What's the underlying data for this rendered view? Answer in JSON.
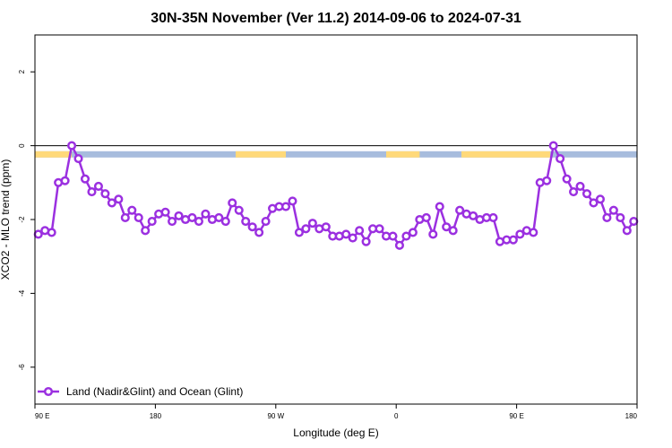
{
  "chart_data": {
    "type": "line",
    "title": "30N-35N November (Ver 11.2)   2014-09-06 to 2024-07-31",
    "xlabel": "Longitude (deg E)",
    "ylabel": "XCO2 - MLO trend (ppm)",
    "xlim": [
      90,
      450
    ],
    "ylim": [
      -7,
      3
    ],
    "x_ticks": [
      {
        "value": 90,
        "label": "90 E"
      },
      {
        "value": 162,
        "label": "180"
      },
      {
        "value": 234,
        "label": "90 W"
      },
      {
        "value": 306,
        "label": "0"
      },
      {
        "value": 378,
        "label": "90 E"
      },
      {
        "value": 450,
        "label": "180"
      }
    ],
    "y_ticks": [
      {
        "value": 2,
        "label": "2"
      },
      {
        "value": 0,
        "label": "0"
      },
      {
        "value": -2,
        "label": "-2"
      },
      {
        "value": -4,
        "label": "-4"
      },
      {
        "value": -6,
        "label": "-6"
      }
    ],
    "legend": {
      "position": "bottom-left"
    },
    "colors": {
      "series": "#9B30E0",
      "land": "#FFD97A",
      "ocean": "#A7BCDD",
      "zero_line": "#000000"
    },
    "land_ocean_band": {
      "y_top": -0.15,
      "y_bottom": -0.32,
      "land_segments": [
        [
          90,
          112
        ],
        [
          210,
          240
        ],
        [
          300,
          320
        ],
        [
          345,
          398
        ]
      ]
    },
    "series": [
      {
        "name": "Land (Nadir&Glint) and Ocean (Glint)",
        "x": [
          92,
          96,
          100,
          104,
          108,
          112,
          116,
          120,
          124,
          128,
          132,
          136,
          140,
          144,
          148,
          152,
          156,
          160,
          164,
          168,
          172,
          176,
          180,
          184,
          188,
          192,
          196,
          200,
          204,
          208,
          212,
          216,
          220,
          224,
          228,
          232,
          236,
          240,
          244,
          248,
          252,
          256,
          260,
          264,
          268,
          272,
          276,
          280,
          284,
          288,
          292,
          296,
          300,
          304,
          308,
          312,
          316,
          320,
          324,
          328,
          332,
          336,
          340,
          344,
          348,
          352,
          356,
          360,
          364,
          368,
          372,
          376,
          380,
          384,
          388,
          392,
          396,
          400,
          404,
          408,
          412,
          416,
          420,
          424,
          428,
          432,
          436,
          440,
          444,
          448
        ],
        "values": [
          -2.4,
          -2.3,
          -2.35,
          -1.0,
          -0.95,
          0.0,
          -0.35,
          -0.9,
          -1.25,
          -1.1,
          -1.3,
          -1.55,
          -1.45,
          -1.95,
          -1.75,
          -1.95,
          -2.3,
          -2.05,
          -1.85,
          -1.8,
          -2.05,
          -1.9,
          -2.0,
          -1.95,
          -2.05,
          -1.85,
          -2.0,
          -1.95,
          -2.05,
          -1.55,
          -1.75,
          -2.05,
          -2.2,
          -2.35,
          -2.05,
          -1.7,
          -1.65,
          -1.65,
          -1.5,
          -2.35,
          -2.25,
          -2.1,
          -2.25,
          -2.2,
          -2.45,
          -2.45,
          -2.4,
          -2.5,
          -2.3,
          -2.6,
          -2.25,
          -2.25,
          -2.45,
          -2.45,
          -2.7,
          -2.45,
          -2.35,
          -2.0,
          -1.95,
          -2.4,
          -1.65,
          -2.2,
          -2.3,
          -1.75,
          -1.85,
          -1.9,
          -2.0,
          -1.95,
          -1.95,
          -2.6,
          -2.55,
          -2.55,
          -2.4,
          -2.3,
          -2.35,
          -1.0,
          -0.95,
          0.0,
          -0.35,
          -0.9,
          -1.25,
          -1.1,
          -1.3,
          -1.55,
          -1.45,
          -1.95,
          -1.75,
          -1.95,
          -2.3,
          -2.05
        ]
      }
    ]
  }
}
